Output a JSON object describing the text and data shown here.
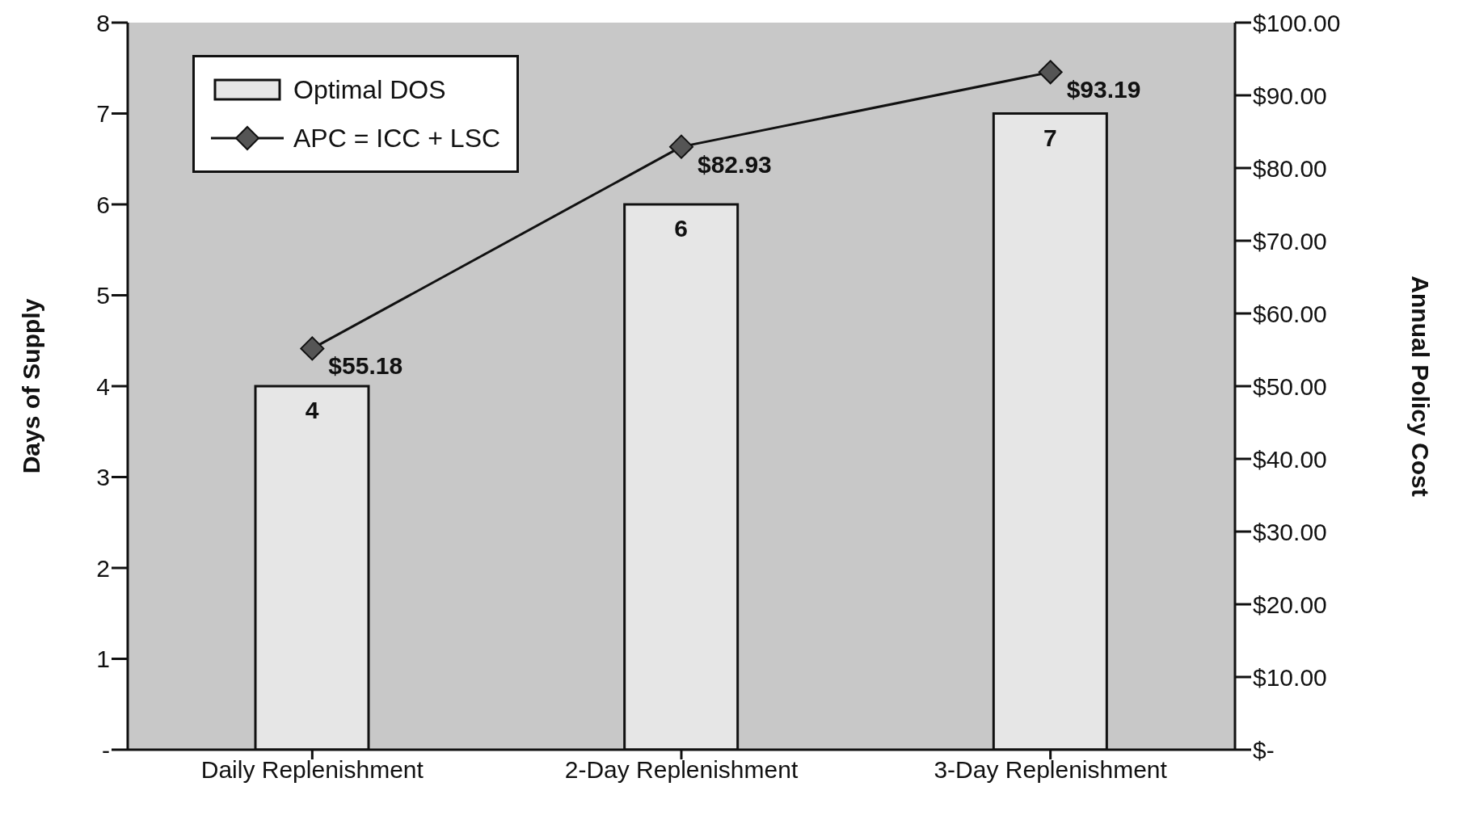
{
  "chart_data": {
    "type": "bar",
    "categories": [
      "Daily Replenishment",
      "2-Day Replenishment",
      "3-Day Replenishment"
    ],
    "ylabel": "Days of Supply",
    "y2label": "Annual Policy Cost",
    "series": [
      {
        "name": "Optimal DOS",
        "color": "#e6e6e6",
        "values": [
          4,
          6,
          7
        ],
        "value_labels": [
          "4",
          "6",
          "7"
        ]
      },
      {
        "name": "APC = ICC + LSC",
        "type": "line",
        "axis": "y2",
        "color": "#555555",
        "values": [
          55.18,
          82.93,
          93.19
        ],
        "value_labels": [
          "$55.18",
          "$82.93",
          "$93.19"
        ]
      }
    ],
    "ylim": [
      0,
      8
    ],
    "yticks": [
      {
        "value": 0,
        "label": "-"
      },
      1,
      2,
      3,
      4,
      5,
      6,
      7,
      8
    ],
    "y2lim": [
      0,
      100
    ],
    "y2ticks": [
      {
        "value": 0,
        "label": "$-"
      },
      {
        "value": 10,
        "label": "$10.00"
      },
      {
        "value": 20,
        "label": "$20.00"
      },
      {
        "value": 30,
        "label": "$30.00"
      },
      {
        "value": 40,
        "label": "$40.00"
      },
      {
        "value": 50,
        "label": "$50.00"
      },
      {
        "value": 60,
        "label": "$60.00"
      },
      {
        "value": 70,
        "label": "$70.00"
      },
      {
        "value": 80,
        "label": "$80.00"
      },
      {
        "value": 90,
        "label": "$90.00"
      },
      {
        "value": 100,
        "label": "$100.00"
      }
    ],
    "legend": "top left",
    "marker": "diamond",
    "grid": false
  }
}
